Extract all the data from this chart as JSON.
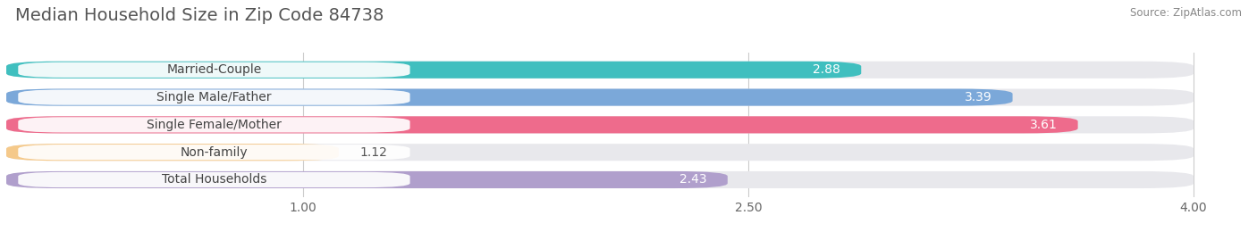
{
  "title": "Median Household Size in Zip Code 84738",
  "source": "Source: ZipAtlas.com",
  "categories": [
    "Married-Couple",
    "Single Male/Father",
    "Single Female/Mother",
    "Non-family",
    "Total Households"
  ],
  "values": [
    2.88,
    3.39,
    3.61,
    1.12,
    2.43
  ],
  "bar_colors": [
    "#40BFBF",
    "#7BA8D9",
    "#EE6B8C",
    "#F5C98A",
    "#B09FCC"
  ],
  "background_color": "#ffffff",
  "bar_bg_color": "#e8e8ec",
  "xlim_data": [
    0.0,
    4.2
  ],
  "xmin": 0.0,
  "xmax": 4.0,
  "xticks": [
    1.0,
    2.5,
    4.0
  ],
  "title_fontsize": 14,
  "label_fontsize": 10,
  "value_fontsize": 10,
  "bar_height": 0.62,
  "bar_gap": 0.38
}
